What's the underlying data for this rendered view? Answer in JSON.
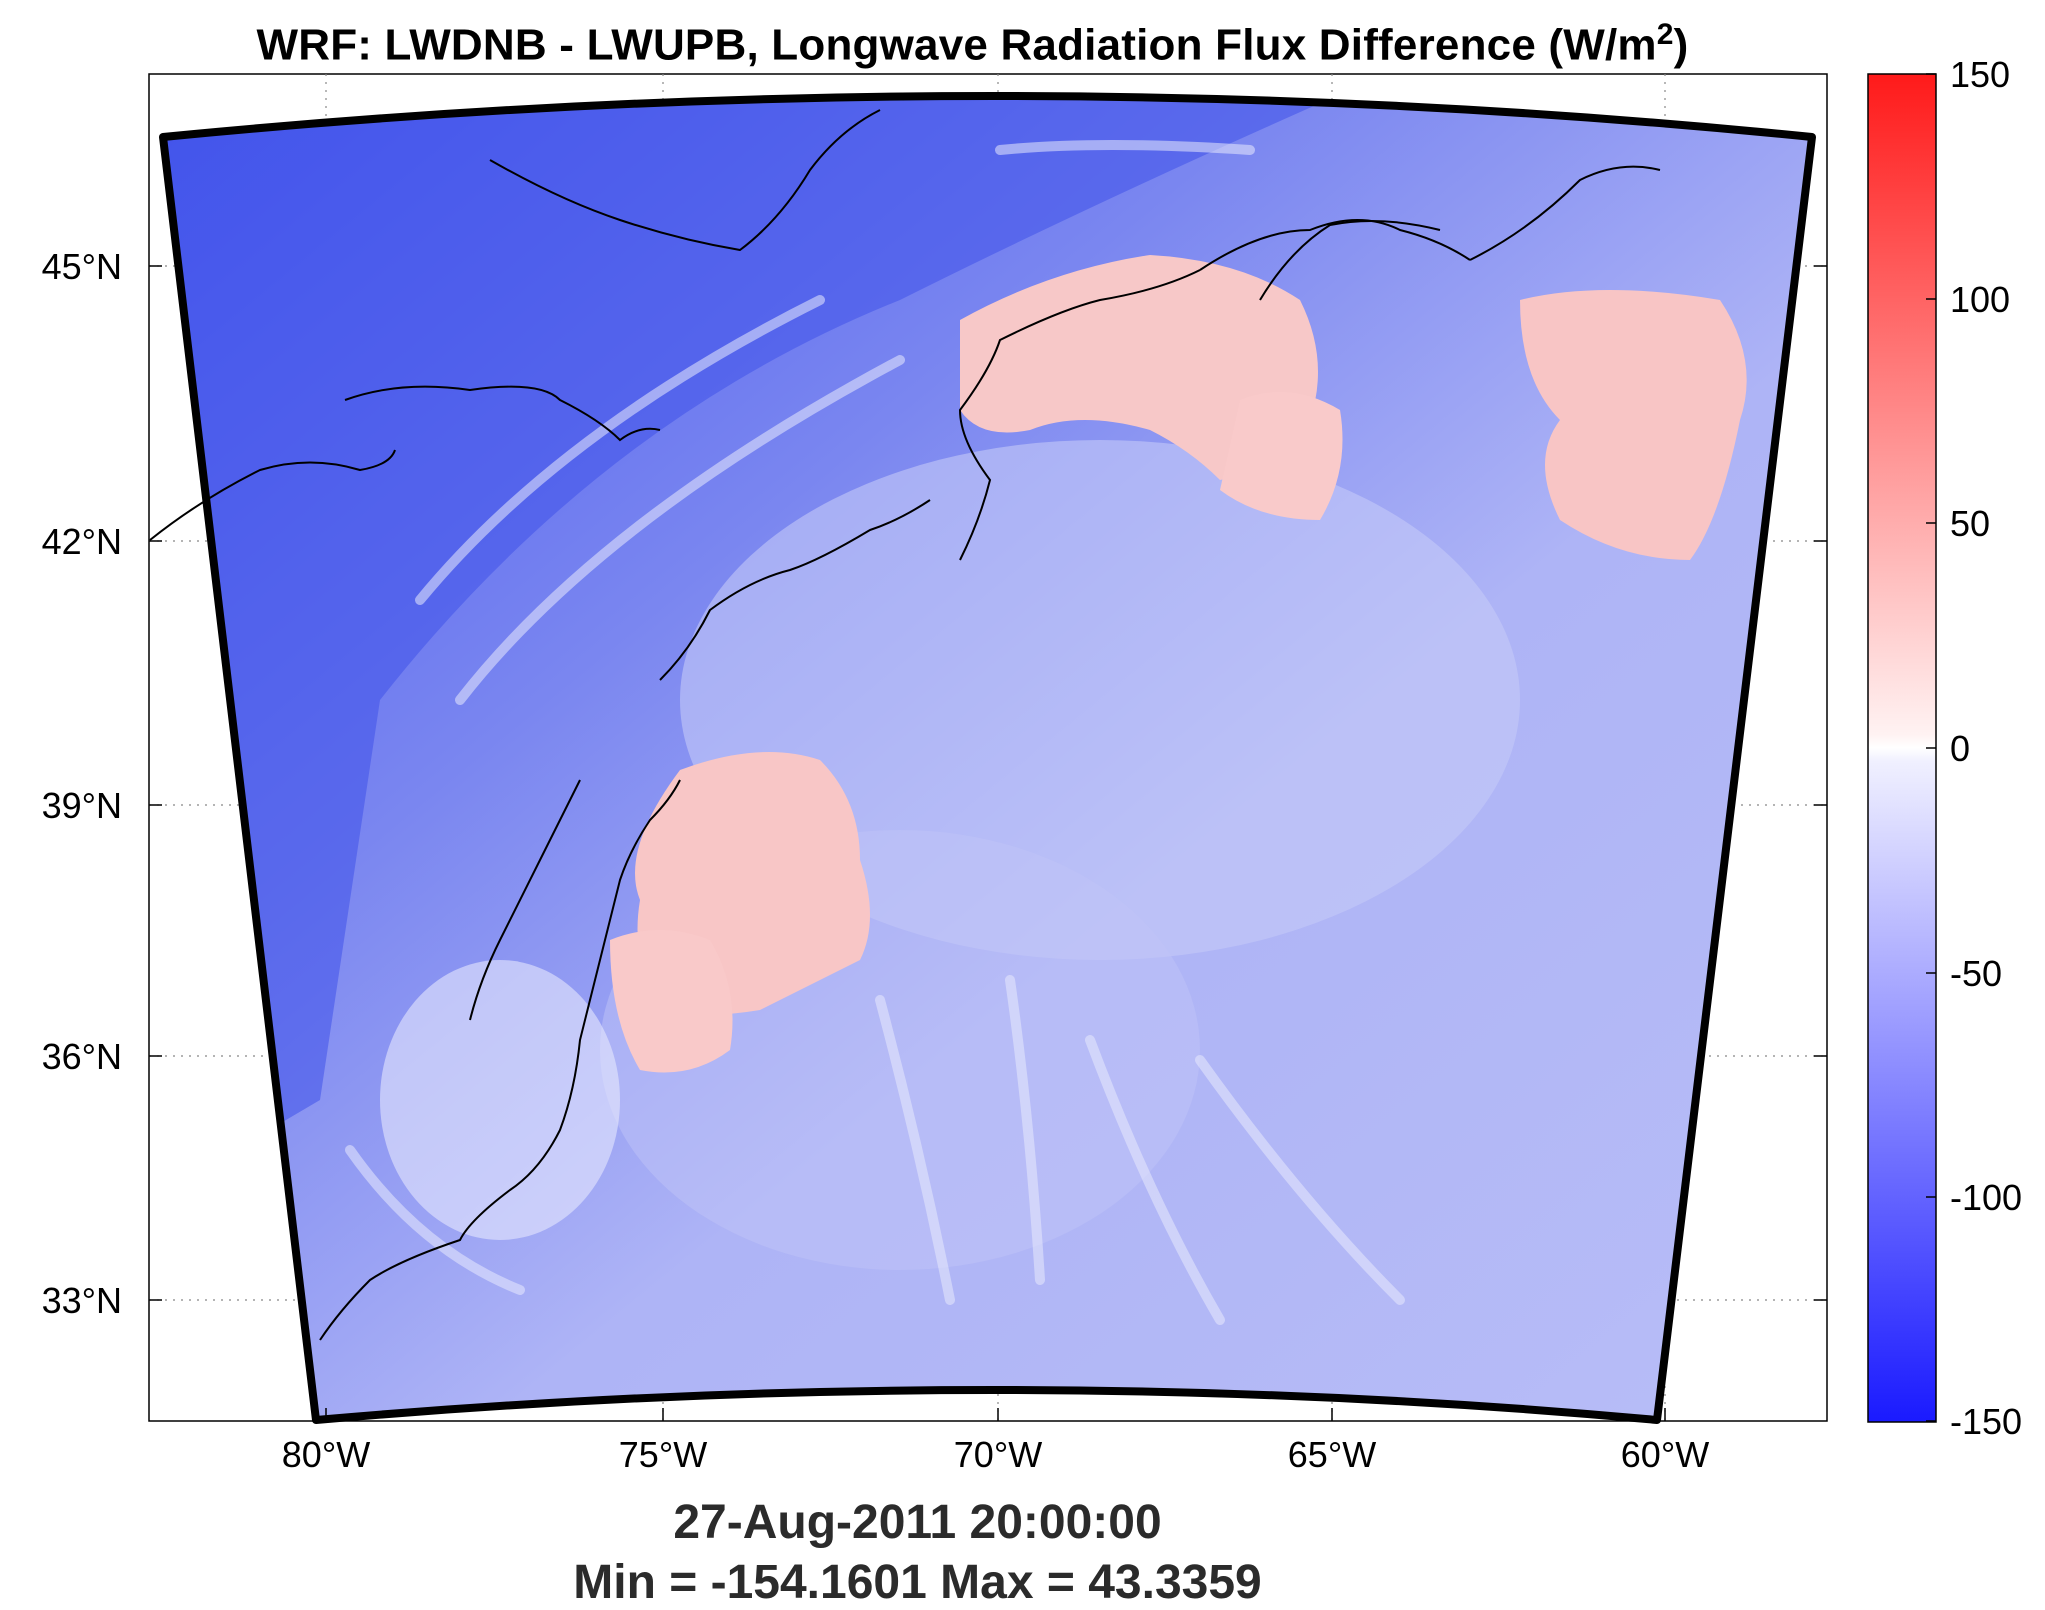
{
  "title": {
    "prefix": "WRF: LWDNB - LWUPB, Longwave Radiation Flux Difference (W/m",
    "superscript": "2",
    "suffix": ")"
  },
  "map": {
    "lat_labels": [
      "45°N",
      "42°N",
      "39°N",
      "36°N",
      "33°N"
    ],
    "lon_labels": [
      "80°W",
      "75°W",
      "70°W",
      "65°W",
      "60°W"
    ]
  },
  "colorbar": {
    "ticks": [
      "150",
      "100",
      "50",
      "0",
      "-50",
      "-100",
      "-150"
    ],
    "min": -150,
    "max": 150,
    "colors": {
      "high": "#ff0000",
      "mid": "#ffffff",
      "low": "#0000ff"
    }
  },
  "footer": {
    "timestamp": "27-Aug-2011 20:00:00",
    "stats": "Min = -154.1601  Max = 43.3359"
  }
}
